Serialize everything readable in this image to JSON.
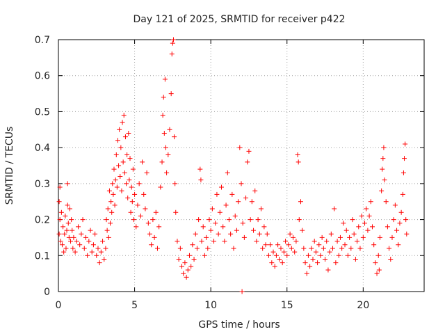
{
  "chart_data": {
    "type": "scatter",
    "title": "Day 121 of 2025, SRMTID for receiver p422",
    "xlabel": "GPS time / hours",
    "ylabel": "SRMTID / TECUs",
    "xlim": [
      0,
      24
    ],
    "ylim": [
      0,
      0.7
    ],
    "x_ticks": [
      0,
      5,
      10,
      15,
      20
    ],
    "y_ticks": [
      0,
      0.1,
      0.2,
      0.3,
      0.4,
      0.5,
      0.6,
      0.7
    ],
    "x_tick_labels": [
      "0",
      "5",
      "10",
      "15",
      "20"
    ],
    "y_tick_labels": [
      "0",
      "0.1",
      "0.2",
      "0.3",
      "0.4",
      "0.5",
      "0.6",
      "0.7"
    ],
    "grid": true,
    "marker": "+",
    "color": "#ff0000",
    "series": [
      {
        "name": "SRMTID",
        "points": [
          [
            0.05,
            0.16
          ],
          [
            0.05,
            0.25
          ],
          [
            0.1,
            0.2
          ],
          [
            0.1,
            0.29
          ],
          [
            0.15,
            0.14
          ],
          [
            0.2,
            0.22
          ],
          [
            0.25,
            0.13
          ],
          [
            0.3,
            0.18
          ],
          [
            0.35,
            0.11
          ],
          [
            0.4,
            0.16
          ],
          [
            0.45,
            0.21
          ],
          [
            0.5,
            0.12
          ],
          [
            0.55,
            0.17
          ],
          [
            0.6,
            0.3
          ],
          [
            0.6,
            0.24
          ],
          [
            0.65,
            0.19
          ],
          [
            0.7,
            0.15
          ],
          [
            0.75,
            0.23
          ],
          [
            0.8,
            0.14
          ],
          [
            0.85,
            0.2
          ],
          [
            0.9,
            0.17
          ],
          [
            0.95,
            0.12
          ],
          [
            1.0,
            0.15
          ],
          [
            1.1,
            0.11
          ],
          [
            1.2,
            0.14
          ],
          [
            1.3,
            0.18
          ],
          [
            1.4,
            0.13
          ],
          [
            1.5,
            0.16
          ],
          [
            1.6,
            0.2
          ],
          [
            1.7,
            0.12
          ],
          [
            1.8,
            0.15
          ],
          [
            1.9,
            0.1
          ],
          [
            2.0,
            0.14
          ],
          [
            2.1,
            0.17
          ],
          [
            2.2,
            0.11
          ],
          [
            2.3,
            0.13
          ],
          [
            2.4,
            0.16
          ],
          [
            2.5,
            0.1
          ],
          [
            2.6,
            0.12
          ],
          [
            2.7,
            0.08
          ],
          [
            2.8,
            0.11
          ],
          [
            2.9,
            0.14
          ],
          [
            3.0,
            0.09
          ],
          [
            3.1,
            0.12
          ],
          [
            3.15,
            0.2
          ],
          [
            3.2,
            0.17
          ],
          [
            3.25,
            0.23
          ],
          [
            3.3,
            0.15
          ],
          [
            3.35,
            0.28
          ],
          [
            3.4,
            0.19
          ],
          [
            3.45,
            0.25
          ],
          [
            3.5,
            0.22
          ],
          [
            3.55,
            0.3
          ],
          [
            3.6,
            0.27
          ],
          [
            3.65,
            0.34
          ],
          [
            3.7,
            0.24
          ],
          [
            3.75,
            0.31
          ],
          [
            3.8,
            0.38
          ],
          [
            3.85,
            0.29
          ],
          [
            3.9,
            0.42
          ],
          [
            3.95,
            0.35
          ],
          [
            4.0,
            0.45
          ],
          [
            4.05,
            0.32
          ],
          [
            4.1,
            0.4
          ],
          [
            4.15,
            0.28
          ],
          [
            4.2,
            0.47
          ],
          [
            4.25,
            0.36
          ],
          [
            4.3,
            0.49
          ],
          [
            4.35,
            0.33
          ],
          [
            4.4,
            0.43
          ],
          [
            4.45,
            0.3
          ],
          [
            4.5,
            0.38
          ],
          [
            4.55,
            0.26
          ],
          [
            4.6,
            0.44
          ],
          [
            4.65,
            0.31
          ],
          [
            4.7,
            0.37
          ],
          [
            4.75,
            0.22
          ],
          [
            4.8,
            0.29
          ],
          [
            4.85,
            0.25
          ],
          [
            4.9,
            0.34
          ],
          [
            4.95,
            0.2
          ],
          [
            5.0,
            0.27
          ],
          [
            5.1,
            0.18
          ],
          [
            5.2,
            0.24
          ],
          [
            5.3,
            0.3
          ],
          [
            5.4,
            0.21
          ],
          [
            5.5,
            0.36
          ],
          [
            5.6,
            0.27
          ],
          [
            5.7,
            0.23
          ],
          [
            5.8,
            0.33
          ],
          [
            5.9,
            0.19
          ],
          [
            6.0,
            0.16
          ],
          [
            6.1,
            0.13
          ],
          [
            6.2,
            0.2
          ],
          [
            6.3,
            0.15
          ],
          [
            6.4,
            0.22
          ],
          [
            6.5,
            0.12
          ],
          [
            6.6,
            0.18
          ],
          [
            6.7,
            0.29
          ],
          [
            6.8,
            0.36
          ],
          [
            6.85,
            0.49
          ],
          [
            6.9,
            0.54
          ],
          [
            6.95,
            0.44
          ],
          [
            7.0,
            0.59
          ],
          [
            7.05,
            0.4
          ],
          [
            7.1,
            0.33
          ],
          [
            7.2,
            0.38
          ],
          [
            7.3,
            0.45
          ],
          [
            7.4,
            0.55
          ],
          [
            7.45,
            0.66
          ],
          [
            7.5,
            0.69
          ],
          [
            7.55,
            0.7
          ],
          [
            7.6,
            0.43
          ],
          [
            7.65,
            0.3
          ],
          [
            7.7,
            0.22
          ],
          [
            7.8,
            0.14
          ],
          [
            7.9,
            0.09
          ],
          [
            8.0,
            0.12
          ],
          [
            8.1,
            0.07
          ],
          [
            8.2,
            0.05
          ],
          [
            8.3,
            0.08
          ],
          [
            8.4,
            0.04
          ],
          [
            8.5,
            0.06
          ],
          [
            8.6,
            0.1
          ],
          [
            8.7,
            0.07
          ],
          [
            8.8,
            0.13
          ],
          [
            8.9,
            0.09
          ],
          [
            9.0,
            0.16
          ],
          [
            9.1,
            0.12
          ],
          [
            9.2,
            0.2
          ],
          [
            9.3,
            0.34
          ],
          [
            9.35,
            0.31
          ],
          [
            9.4,
            0.14
          ],
          [
            9.5,
            0.18
          ],
          [
            9.6,
            0.1
          ],
          [
            9.7,
            0.15
          ],
          [
            9.8,
            0.12
          ],
          [
            9.9,
            0.2
          ],
          [
            10.0,
            0.17
          ],
          [
            10.1,
            0.23
          ],
          [
            10.2,
            0.14
          ],
          [
            10.3,
            0.19
          ],
          [
            10.4,
            0.27
          ],
          [
            10.5,
            0.16
          ],
          [
            10.6,
            0.22
          ],
          [
            10.7,
            0.29
          ],
          [
            10.8,
            0.18
          ],
          [
            10.9,
            0.14
          ],
          [
            11.0,
            0.24
          ],
          [
            11.1,
            0.33
          ],
          [
            11.2,
            0.2
          ],
          [
            11.3,
            0.16
          ],
          [
            11.4,
            0.27
          ],
          [
            11.5,
            0.12
          ],
          [
            11.6,
            0.21
          ],
          [
            11.7,
            0.17
          ],
          [
            11.8,
            0.25
          ],
          [
            11.9,
            0.4
          ],
          [
            12.0,
            0.3
          ],
          [
            12.05,
            0.0
          ],
          [
            12.1,
            0.19
          ],
          [
            12.2,
            0.15
          ],
          [
            12.3,
            0.26
          ],
          [
            12.4,
            0.36
          ],
          [
            12.5,
            0.39
          ],
          [
            12.6,
            0.2
          ],
          [
            12.7,
            0.25
          ],
          [
            12.8,
            0.17
          ],
          [
            12.9,
            0.28
          ],
          [
            13.0,
            0.14
          ],
          [
            13.1,
            0.2
          ],
          [
            13.2,
            0.16
          ],
          [
            13.3,
            0.23
          ],
          [
            13.4,
            0.12
          ],
          [
            13.5,
            0.18
          ],
          [
            13.6,
            0.13
          ],
          [
            13.7,
            0.16
          ],
          [
            13.8,
            0.1
          ],
          [
            13.9,
            0.13
          ],
          [
            14.0,
            0.08
          ],
          [
            14.1,
            0.11
          ],
          [
            14.2,
            0.07
          ],
          [
            14.3,
            0.1
          ],
          [
            14.4,
            0.13
          ],
          [
            14.5,
            0.09
          ],
          [
            14.6,
            0.12
          ],
          [
            14.7,
            0.08
          ],
          [
            14.8,
            0.11
          ],
          [
            14.9,
            0.14
          ],
          [
            15.0,
            0.1
          ],
          [
            15.1,
            0.13
          ],
          [
            15.2,
            0.16
          ],
          [
            15.3,
            0.12
          ],
          [
            15.4,
            0.15
          ],
          [
            15.5,
            0.11
          ],
          [
            15.6,
            0.14
          ],
          [
            15.7,
            0.38
          ],
          [
            15.75,
            0.36
          ],
          [
            15.8,
            0.2
          ],
          [
            15.9,
            0.25
          ],
          [
            16.0,
            0.17
          ],
          [
            16.1,
            0.12
          ],
          [
            16.2,
            0.08
          ],
          [
            16.3,
            0.05
          ],
          [
            16.4,
            0.1
          ],
          [
            16.5,
            0.07
          ],
          [
            16.6,
            0.12
          ],
          [
            16.7,
            0.09
          ],
          [
            16.8,
            0.14
          ],
          [
            16.9,
            0.11
          ],
          [
            17.0,
            0.08
          ],
          [
            17.1,
            0.13
          ],
          [
            17.2,
            0.1
          ],
          [
            17.3,
            0.15
          ],
          [
            17.4,
            0.12
          ],
          [
            17.5,
            0.09
          ],
          [
            17.6,
            0.14
          ],
          [
            17.7,
            0.06
          ],
          [
            17.8,
            0.11
          ],
          [
            17.9,
            0.16
          ],
          [
            18.0,
            0.12
          ],
          [
            18.1,
            0.23
          ],
          [
            18.2,
            0.08
          ],
          [
            18.3,
            0.14
          ],
          [
            18.4,
            0.1
          ],
          [
            18.5,
            0.15
          ],
          [
            18.6,
            0.12
          ],
          [
            18.7,
            0.19
          ],
          [
            18.8,
            0.13
          ],
          [
            18.9,
            0.17
          ],
          [
            19.0,
            0.1
          ],
          [
            19.1,
            0.15
          ],
          [
            19.2,
            0.12
          ],
          [
            19.3,
            0.2
          ],
          [
            19.4,
            0.16
          ],
          [
            19.5,
            0.09
          ],
          [
            19.6,
            0.14
          ],
          [
            19.7,
            0.18
          ],
          [
            19.8,
            0.12
          ],
          [
            19.9,
            0.21
          ],
          [
            20.0,
            0.15
          ],
          [
            20.1,
            0.19
          ],
          [
            20.2,
            0.23
          ],
          [
            20.3,
            0.17
          ],
          [
            20.4,
            0.21
          ],
          [
            20.5,
            0.25
          ],
          [
            20.6,
            0.18
          ],
          [
            20.7,
            0.13
          ],
          [
            20.8,
            0.08
          ],
          [
            20.9,
            0.05
          ],
          [
            21.0,
            0.1
          ],
          [
            21.05,
            0.06
          ],
          [
            21.1,
            0.15
          ],
          [
            21.2,
            0.28
          ],
          [
            21.25,
            0.34
          ],
          [
            21.3,
            0.37
          ],
          [
            21.35,
            0.4
          ],
          [
            21.4,
            0.31
          ],
          [
            21.5,
            0.25
          ],
          [
            21.6,
            0.18
          ],
          [
            21.7,
            0.12
          ],
          [
            21.8,
            0.09
          ],
          [
            21.9,
            0.15
          ],
          [
            22.0,
            0.2
          ],
          [
            22.1,
            0.24
          ],
          [
            22.2,
            0.17
          ],
          [
            22.3,
            0.13
          ],
          [
            22.4,
            0.19
          ],
          [
            22.5,
            0.22
          ],
          [
            22.6,
            0.27
          ],
          [
            22.65,
            0.33
          ],
          [
            22.7,
            0.37
          ],
          [
            22.75,
            0.41
          ],
          [
            22.8,
            0.2
          ],
          [
            22.85,
            0.16
          ]
        ]
      }
    ]
  }
}
